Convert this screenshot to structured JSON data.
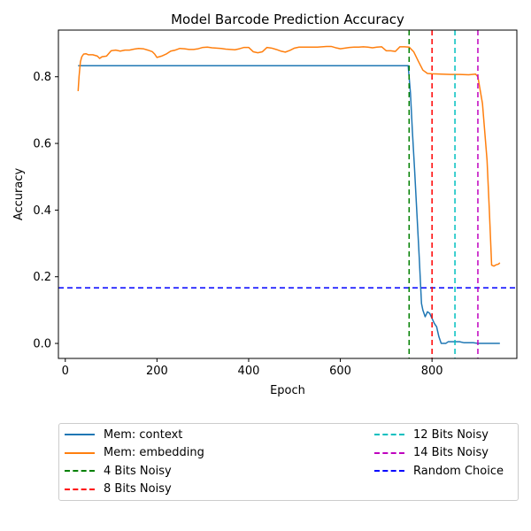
{
  "chart_data": {
    "type": "line",
    "title": "Model Barcode Prediction Accuracy",
    "xlabel": "Epoch",
    "ylabel": "Accuracy",
    "xlim": [
      -15,
      985
    ],
    "ylim": [
      -0.045,
      0.94
    ],
    "xticks": [
      0,
      200,
      400,
      600,
      800
    ],
    "yticks": [
      0.0,
      0.2,
      0.4,
      0.6,
      0.8
    ],
    "xtick_labels": [
      "0",
      "200",
      "400",
      "600",
      "800"
    ],
    "ytick_labels": [
      "0.0",
      "0.2",
      "0.4",
      "0.6",
      "0.8"
    ],
    "grid": false,
    "legend_placement": "below",
    "series": [
      {
        "name": "Mem: context",
        "color": "#1f77b4",
        "style": "solid",
        "x": [
          28,
          35,
          100,
          200,
          300,
          400,
          500,
          600,
          700,
          748,
          753,
          757,
          762,
          767,
          772,
          777,
          780,
          785,
          790,
          795,
          800,
          805,
          810,
          815,
          820,
          825,
          830,
          835,
          840,
          845,
          850,
          855,
          860,
          870,
          880,
          890,
          900,
          910,
          920,
          930,
          940,
          948
        ],
        "y": [
          0.833,
          0.833,
          0.833,
          0.833,
          0.833,
          0.833,
          0.833,
          0.833,
          0.833,
          0.833,
          0.75,
          0.64,
          0.52,
          0.39,
          0.26,
          0.12,
          0.1,
          0.08,
          0.095,
          0.09,
          0.075,
          0.06,
          0.05,
          0.02,
          0.0,
          0.0,
          0.0,
          0.005,
          0.005,
          0.005,
          0.005,
          0.005,
          0.005,
          0.002,
          0.002,
          0.002,
          0.0,
          0.0,
          0.0,
          0.0,
          0.0,
          0.0
        ]
      },
      {
        "name": "Mem: embedding",
        "color": "#ff7f0e",
        "style": "solid",
        "x": [
          28,
          30,
          33,
          36,
          40,
          45,
          50,
          60,
          70,
          75,
          80,
          90,
          100,
          110,
          120,
          130,
          140,
          150,
          160,
          170,
          180,
          190,
          195,
          200,
          210,
          220,
          230,
          240,
          250,
          260,
          270,
          280,
          290,
          300,
          310,
          320,
          330,
          340,
          350,
          360,
          370,
          380,
          390,
          400,
          410,
          420,
          430,
          440,
          450,
          460,
          470,
          480,
          490,
          500,
          510,
          520,
          530,
          540,
          550,
          560,
          570,
          580,
          590,
          600,
          610,
          620,
          630,
          640,
          650,
          660,
          670,
          680,
          690,
          700,
          710,
          720,
          730,
          740,
          750,
          760,
          770,
          780,
          790,
          800,
          820,
          840,
          860,
          880,
          895,
          900,
          910,
          920,
          925,
          930,
          935,
          940,
          945,
          948
        ],
        "y": [
          0.757,
          0.8,
          0.845,
          0.86,
          0.868,
          0.869,
          0.866,
          0.866,
          0.862,
          0.855,
          0.86,
          0.862,
          0.878,
          0.88,
          0.877,
          0.88,
          0.88,
          0.883,
          0.885,
          0.884,
          0.88,
          0.875,
          0.868,
          0.858,
          0.862,
          0.868,
          0.877,
          0.88,
          0.885,
          0.884,
          0.882,
          0.882,
          0.884,
          0.888,
          0.889,
          0.887,
          0.886,
          0.885,
          0.883,
          0.882,
          0.881,
          0.884,
          0.888,
          0.888,
          0.875,
          0.872,
          0.875,
          0.888,
          0.886,
          0.882,
          0.877,
          0.874,
          0.879,
          0.886,
          0.889,
          0.889,
          0.889,
          0.889,
          0.889,
          0.89,
          0.891,
          0.891,
          0.887,
          0.884,
          0.886,
          0.888,
          0.889,
          0.889,
          0.89,
          0.889,
          0.887,
          0.889,
          0.89,
          0.878,
          0.878,
          0.876,
          0.89,
          0.89,
          0.889,
          0.875,
          0.847,
          0.82,
          0.81,
          0.809,
          0.808,
          0.807,
          0.807,
          0.806,
          0.808,
          0.8,
          0.72,
          0.55,
          0.4,
          0.235,
          0.232,
          0.236,
          0.238,
          0.242
        ]
      }
    ],
    "vlines": [
      {
        "name": "4 Bits Noisy",
        "x": 750,
        "color": "#008000"
      },
      {
        "name": "8 Bits Noisy",
        "x": 800,
        "color": "#ff0000"
      },
      {
        "name": "12 Bits Noisy",
        "x": 850,
        "color": "#00bfbf"
      },
      {
        "name": "14 Bits Noisy",
        "x": 900,
        "color": "#bf00bf"
      }
    ],
    "hlines": [
      {
        "name": "Random Choice",
        "y": 0.1667,
        "color": "#0000ff"
      }
    ]
  },
  "legend": {
    "items": [
      {
        "label": "Mem: context",
        "color": "#1f77b4",
        "dashed": false
      },
      {
        "label": "Mem: embedding",
        "color": "#ff7f0e",
        "dashed": false
      },
      {
        "label": "4 Bits Noisy",
        "color": "#008000",
        "dashed": true
      },
      {
        "label": "8 Bits Noisy",
        "color": "#ff0000",
        "dashed": true
      },
      {
        "label": "12 Bits Noisy",
        "color": "#00bfbf",
        "dashed": true
      },
      {
        "label": "14 Bits Noisy",
        "color": "#bf00bf",
        "dashed": true
      },
      {
        "label": "Random Choice",
        "color": "#0000ff",
        "dashed": true
      }
    ]
  }
}
